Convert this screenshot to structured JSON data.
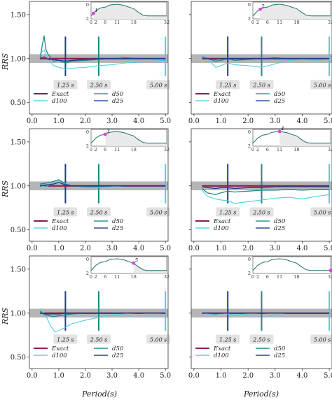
{
  "figure": {
    "ylabel": "RRS",
    "xlabel": "Period(s)"
  },
  "colors": {
    "exact": "#8e1e53",
    "d100": "#4dd0df",
    "d50": "#1d8a87",
    "d25": "#1f3c8c",
    "band": "#a8a8a8",
    "marker_box": "#e2e2e2",
    "inset_fill": "#e9e9e9",
    "inset_line": "#1d6f6b",
    "inset_dot": "#e040e0"
  },
  "legend": [
    "Exact",
    "d100",
    "d50",
    "d25"
  ],
  "chart_data": [
    {
      "type": "line",
      "panel": 1,
      "row": 1,
      "col": 1,
      "xlim": [
        -0.1,
        5.1
      ],
      "ylim": [
        0.37,
        1.65
      ],
      "x_ticks": [
        "0.0",
        "1.0",
        "2.0",
        "3.0",
        "4.0",
        "5.0"
      ],
      "y_ticks": [
        "0.50",
        "1.00",
        "1.50"
      ],
      "band": [
        0.95,
        1.05
      ],
      "period_markers": [
        {
          "x": 1.25,
          "label": "1.25 s"
        },
        {
          "x": 2.5,
          "label": "2.50 s"
        },
        {
          "x": 5.0,
          "label": "5.00 s"
        }
      ],
      "inset": {
        "x_ticks": [
          "0",
          "2",
          "6",
          "11",
          "18",
          "32"
        ],
        "y_ticks": [
          "0",
          "2"
        ],
        "highlight_index": "1",
        "highlight_x": 1
      },
      "series": [
        {
          "name": "Exact",
          "x": [
            0.3,
            5.0
          ],
          "y": [
            1.0,
            1.0
          ]
        },
        {
          "name": "d100",
          "x": [
            0.3,
            0.45,
            0.6,
            0.8,
            1.0,
            1.25,
            1.5,
            2.0,
            2.5,
            3.0,
            3.5,
            4.0,
            4.5,
            5.0
          ],
          "y": [
            1.05,
            1.1,
            1.0,
            0.92,
            0.9,
            0.88,
            0.89,
            0.9,
            0.92,
            0.93,
            0.95,
            0.96,
            0.97,
            0.98
          ]
        },
        {
          "name": "d50",
          "x": [
            0.3,
            0.38,
            0.45,
            0.52,
            0.6,
            0.8,
            1.0,
            1.25,
            1.5,
            2.0,
            2.5,
            3.0,
            3.5,
            4.0,
            4.5,
            5.0
          ],
          "y": [
            1.0,
            1.15,
            1.26,
            1.1,
            1.05,
            0.97,
            0.98,
            0.95,
            0.97,
            0.98,
            0.99,
            1.0,
            1.01,
            1.0,
            1.0,
            1.0
          ]
        },
        {
          "name": "d25",
          "x": [
            0.3,
            0.45,
            0.6,
            0.8,
            1.0,
            1.25,
            1.5,
            2.0,
            2.5,
            3.0,
            3.5,
            4.0,
            4.5,
            5.0
          ],
          "y": [
            1.0,
            1.02,
            0.99,
            0.99,
            0.98,
            0.97,
            0.98,
            0.99,
            1.0,
            1.0,
            1.0,
            1.0,
            1.0,
            1.0
          ]
        }
      ]
    },
    {
      "type": "line",
      "panel": 2,
      "row": 1,
      "col": 2,
      "xlim": [
        -0.1,
        5.1
      ],
      "ylim": [
        0.37,
        1.65
      ],
      "x_ticks": [
        "0.0",
        "1.0",
        "2.0",
        "3.0",
        "4.0",
        "5.0"
      ],
      "y_ticks": [],
      "band": [
        0.95,
        1.05
      ],
      "period_markers": [
        {
          "x": 1.25,
          "label": "1.25 s"
        },
        {
          "x": 2.5,
          "label": "2.50 s"
        },
        {
          "x": 5.0,
          "label": "5.00 s"
        }
      ],
      "inset": {
        "x_ticks": [
          "0",
          "2",
          "6",
          "11",
          "18",
          "32"
        ],
        "y_ticks": [
          "0",
          "2"
        ],
        "highlight_index": "2",
        "highlight_x": 3
      },
      "series": [
        {
          "name": "Exact",
          "x": [
            0.3,
            5.0
          ],
          "y": [
            1.0,
            1.0
          ]
        },
        {
          "name": "d100",
          "x": [
            0.3,
            0.5,
            0.8,
            1.0,
            1.25,
            1.5,
            2.0,
            2.5,
            3.0,
            3.5,
            4.0,
            4.5,
            5.0
          ],
          "y": [
            1.0,
            1.0,
            0.9,
            0.92,
            0.95,
            0.93,
            0.92,
            0.9,
            0.94,
            0.98,
            0.99,
            0.98,
            0.99
          ]
        },
        {
          "name": "d50",
          "x": [
            0.3,
            0.5,
            0.8,
            1.0,
            1.25,
            1.5,
            2.0,
            2.5,
            3.0,
            3.5,
            4.0,
            4.5,
            5.0
          ],
          "y": [
            1.02,
            1.0,
            0.97,
            0.98,
            1.0,
            0.98,
            0.99,
            1.0,
            1.01,
            1.0,
            1.0,
            1.0,
            1.0
          ]
        },
        {
          "name": "d25",
          "x": [
            0.3,
            0.5,
            0.8,
            1.0,
            1.25,
            1.5,
            2.0,
            2.5,
            3.0,
            3.5,
            4.0,
            4.5,
            5.0
          ],
          "y": [
            1.0,
            1.0,
            0.99,
            1.0,
            1.0,
            1.0,
            1.0,
            1.0,
            1.0,
            1.0,
            1.0,
            1.0,
            1.0
          ]
        }
      ]
    },
    {
      "type": "line",
      "panel": 3,
      "row": 2,
      "col": 1,
      "xlim": [
        -0.1,
        5.1
      ],
      "ylim": [
        0.37,
        1.65
      ],
      "x_ticks": [
        "0.0",
        "1.0",
        "2.0",
        "3.0",
        "4.0",
        "5.0"
      ],
      "y_ticks": [
        "0.50",
        "1.00",
        "1.50"
      ],
      "band": [
        0.95,
        1.05
      ],
      "period_markers": [
        {
          "x": 1.25,
          "label": "1.25 s"
        },
        {
          "x": 2.5,
          "label": "2.50 s"
        },
        {
          "x": 5.0,
          "label": "5.00 s"
        }
      ],
      "inset": {
        "x_ticks": [
          "0",
          "2",
          "6",
          "11",
          "18",
          "32"
        ],
        "y_ticks": [
          "0",
          "2"
        ],
        "highlight_index": "3",
        "highlight_x": 6
      },
      "series": [
        {
          "name": "Exact",
          "x": [
            0.3,
            5.0
          ],
          "y": [
            1.0,
            1.0
          ]
        },
        {
          "name": "d100",
          "x": [
            0.3,
            0.5,
            0.8,
            1.0,
            1.25,
            1.5,
            2.0,
            2.5,
            3.0,
            3.5,
            4.0,
            4.5,
            5.0
          ],
          "y": [
            1.0,
            0.99,
            1.03,
            1.06,
            1.03,
            1.0,
            0.99,
            0.98,
            0.99,
            1.0,
            1.0,
            1.0,
            1.0
          ]
        },
        {
          "name": "d50",
          "x": [
            0.3,
            0.5,
            0.8,
            1.0,
            1.25,
            1.5,
            2.0,
            2.5,
            3.0,
            3.5,
            4.0,
            4.5,
            5.0
          ],
          "y": [
            1.02,
            1.03,
            1.05,
            1.07,
            1.02,
            1.0,
            0.99,
            0.99,
            1.0,
            1.0,
            1.0,
            1.0,
            1.0
          ]
        },
        {
          "name": "d25",
          "x": [
            0.3,
            0.5,
            0.8,
            1.0,
            1.25,
            1.5,
            2.0,
            2.5,
            3.0,
            3.5,
            4.0,
            4.5,
            5.0
          ],
          "y": [
            1.0,
            1.01,
            1.02,
            1.04,
            1.01,
            1.0,
            1.0,
            1.0,
            1.0,
            1.0,
            1.0,
            1.0,
            1.0
          ]
        }
      ]
    },
    {
      "type": "line",
      "panel": 4,
      "row": 2,
      "col": 2,
      "xlim": [
        -0.1,
        5.1
      ],
      "ylim": [
        0.37,
        1.65
      ],
      "x_ticks": [
        "0.0",
        "1.0",
        "2.0",
        "3.0",
        "4.0",
        "5.0"
      ],
      "y_ticks": [],
      "band": [
        0.95,
        1.05
      ],
      "period_markers": [
        {
          "x": 1.25,
          "label": "1.25 s"
        },
        {
          "x": 2.5,
          "label": "2.50 s"
        },
        {
          "x": 5.0,
          "label": "5.00 s"
        }
      ],
      "inset": {
        "x_ticks": [
          "0",
          "2",
          "6",
          "11",
          "18",
          "32"
        ],
        "y_ticks": [
          "0",
          "2"
        ],
        "highlight_index": "4",
        "highlight_x": 11
      },
      "series": [
        {
          "name": "Exact",
          "x": [
            0.3,
            5.0
          ],
          "y": [
            1.0,
            1.0
          ]
        },
        {
          "name": "d100",
          "x": [
            0.3,
            0.5,
            0.8,
            1.0,
            1.25,
            1.5,
            2.0,
            2.5,
            3.0,
            3.5,
            4.0,
            4.5,
            5.0
          ],
          "y": [
            0.95,
            0.88,
            0.85,
            0.84,
            0.83,
            0.8,
            0.82,
            0.84,
            0.86,
            0.87,
            0.85,
            0.88,
            0.9
          ]
        },
        {
          "name": "d50",
          "x": [
            0.3,
            0.5,
            0.8,
            1.0,
            1.25,
            1.5,
            2.0,
            2.5,
            3.0,
            3.5,
            4.0,
            4.5,
            5.0
          ],
          "y": [
            0.97,
            0.92,
            0.9,
            0.92,
            0.94,
            0.93,
            0.94,
            0.95,
            0.95,
            0.96,
            0.95,
            0.96,
            0.96
          ]
        },
        {
          "name": "d25",
          "x": [
            0.3,
            0.5,
            0.8,
            1.0,
            1.25,
            1.5,
            2.0,
            2.5,
            3.0,
            3.5,
            4.0,
            4.5,
            5.0
          ],
          "y": [
            0.99,
            0.98,
            0.97,
            0.98,
            0.98,
            0.97,
            0.98,
            0.98,
            0.99,
            0.99,
            0.99,
            0.99,
            0.99
          ]
        }
      ]
    },
    {
      "type": "line",
      "panel": 5,
      "row": 3,
      "col": 1,
      "xlim": [
        -0.1,
        5.1
      ],
      "ylim": [
        0.37,
        1.65
      ],
      "x_ticks": [
        "0.0",
        "1.0",
        "2.0",
        "3.0",
        "4.0",
        "5.0"
      ],
      "y_ticks": [
        "0.50",
        "1.00",
        "1.50"
      ],
      "band": [
        0.95,
        1.05
      ],
      "period_markers": [
        {
          "x": 1.25,
          "label": "1.25 s"
        },
        {
          "x": 2.5,
          "label": "2.50 s"
        },
        {
          "x": 5.0,
          "label": "5.00 s"
        }
      ],
      "inset": {
        "x_ticks": [
          "0",
          "2",
          "6",
          "11",
          "18",
          "32"
        ],
        "y_ticks": [
          "0",
          "2"
        ],
        "highlight_index": "5",
        "highlight_x": 18
      },
      "series": [
        {
          "name": "Exact",
          "x": [
            0.3,
            5.0
          ],
          "y": [
            1.0,
            1.0
          ]
        },
        {
          "name": "d100",
          "x": [
            0.3,
            0.5,
            0.7,
            0.85,
            1.0,
            1.25,
            1.5,
            2.0,
            2.5,
            3.0,
            3.5,
            4.0,
            4.5,
            5.0
          ],
          "y": [
            1.05,
            0.98,
            0.85,
            0.79,
            0.8,
            0.84,
            0.88,
            0.92,
            0.95,
            0.98,
            0.99,
            1.0,
            0.99,
            1.0
          ]
        },
        {
          "name": "d50",
          "x": [
            0.3,
            0.5,
            0.8,
            1.0,
            1.25,
            1.5,
            2.0,
            2.5,
            3.0,
            3.5,
            4.0,
            4.5,
            5.0
          ],
          "y": [
            1.02,
            0.98,
            0.96,
            0.97,
            0.98,
            0.99,
            1.0,
            1.0,
            1.0,
            1.0,
            1.0,
            1.0,
            1.0
          ]
        },
        {
          "name": "d25",
          "x": [
            0.3,
            0.5,
            0.8,
            1.0,
            1.25,
            1.5,
            2.0,
            2.5,
            3.0,
            3.5,
            4.0,
            4.5,
            5.0
          ],
          "y": [
            1.0,
            0.99,
            0.99,
            0.99,
            1.0,
            1.0,
            1.0,
            1.0,
            1.0,
            1.0,
            1.0,
            1.0,
            1.0
          ]
        }
      ]
    },
    {
      "type": "line",
      "panel": 6,
      "row": 3,
      "col": 2,
      "xlim": [
        -0.1,
        5.1
      ],
      "ylim": [
        0.37,
        1.65
      ],
      "x_ticks": [
        "0.0",
        "1.0",
        "2.0",
        "3.0",
        "4.0",
        "5.0"
      ],
      "y_ticks": [],
      "band": [
        0.95,
        1.05
      ],
      "period_markers": [
        {
          "x": 1.25,
          "label": "1.25 s"
        },
        {
          "x": 2.5,
          "label": "2.50 s"
        },
        {
          "x": 5.0,
          "label": "5.00 s"
        }
      ],
      "inset": {
        "x_ticks": [
          "0",
          "2",
          "6",
          "11",
          "18",
          "32"
        ],
        "y_ticks": [
          "0",
          "2"
        ],
        "highlight_index": "6",
        "highlight_x": 32
      },
      "series": [
        {
          "name": "Exact",
          "x": [
            0.3,
            5.0
          ],
          "y": [
            1.0,
            1.0
          ]
        },
        {
          "name": "d100",
          "x": [
            0.3,
            0.5,
            0.8,
            1.0,
            1.25,
            1.5,
            2.0,
            2.5,
            3.0,
            3.5,
            4.0,
            4.5,
            5.0
          ],
          "y": [
            1.0,
            0.99,
            0.98,
            1.0,
            0.99,
            0.98,
            0.99,
            1.0,
            0.99,
            1.0,
            1.0,
            1.0,
            1.0
          ]
        },
        {
          "name": "d50",
          "x": [
            0.3,
            0.5,
            0.8,
            1.0,
            1.25,
            1.5,
            2.0,
            2.5,
            3.0,
            3.5,
            4.0,
            4.5,
            5.0
          ],
          "y": [
            1.0,
            1.0,
            0.99,
            1.0,
            1.0,
            1.0,
            1.0,
            1.0,
            1.0,
            1.0,
            1.0,
            1.0,
            1.0
          ]
        },
        {
          "name": "d25",
          "x": [
            0.3,
            0.5,
            0.8,
            1.0,
            1.25,
            1.5,
            2.0,
            2.5,
            3.0,
            3.5,
            4.0,
            4.5,
            5.0
          ],
          "y": [
            1.0,
            1.0,
            1.0,
            1.0,
            1.0,
            1.0,
            1.0,
            1.0,
            1.0,
            1.0,
            1.0,
            1.0,
            1.0
          ]
        }
      ]
    }
  ]
}
